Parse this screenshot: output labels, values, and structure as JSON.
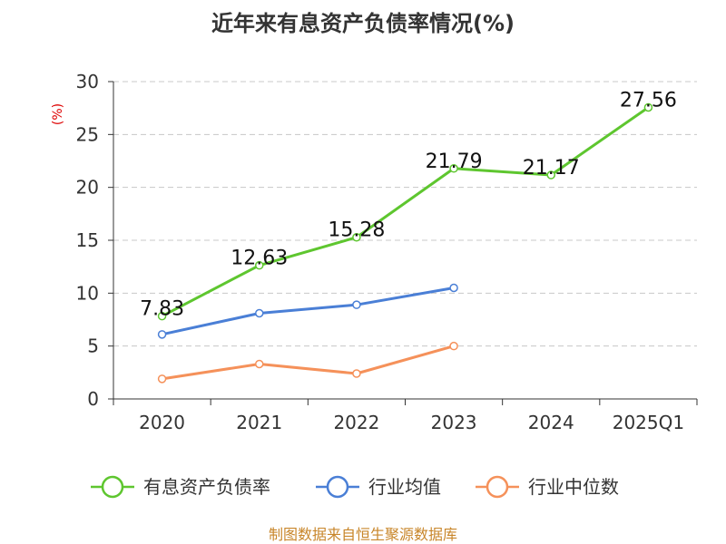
{
  "chart_data": {
    "type": "line",
    "title": "近年来有息资产负债率情况(%)",
    "ylabel": "(%)",
    "categories": [
      "2020",
      "2021",
      "2022",
      "2023",
      "2024",
      "2025Q1"
    ],
    "ylim": [
      0,
      30
    ],
    "yticks": [
      0,
      5,
      10,
      15,
      20,
      25,
      30
    ],
    "grid": true,
    "legend_position": "bottom",
    "series": [
      {
        "name": "有息资产负债率",
        "color": "#5ec62f",
        "values": [
          7.83,
          12.63,
          15.28,
          21.79,
          21.17,
          27.56
        ],
        "labels": [
          "7.83",
          "12.63",
          "15.28",
          "21.79",
          "21.17",
          "27.56"
        ]
      },
      {
        "name": "行业均值",
        "color": "#4a7fd6",
        "values": [
          6.1,
          8.1,
          8.9,
          10.5,
          null,
          null
        ]
      },
      {
        "name": "行业中位数",
        "color": "#f5915a",
        "values": [
          1.9,
          3.3,
          2.4,
          5.0,
          null,
          null
        ]
      }
    ]
  },
  "source": "制图数据来自恒生聚源数据库"
}
